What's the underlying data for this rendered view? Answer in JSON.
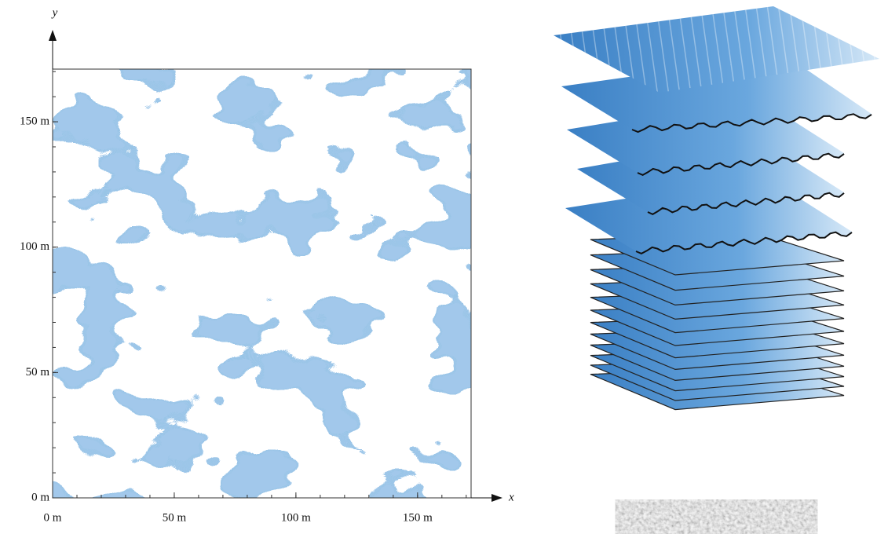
{
  "map": {
    "x_label": "x",
    "y_label": "y",
    "xlim": [
      0,
      172
    ],
    "ylim": [
      0,
      171
    ],
    "xticks": [
      {
        "value": 0,
        "label": "0 m"
      },
      {
        "value": 50,
        "label": "50 m"
      },
      {
        "value": 100,
        "label": "100 m"
      },
      {
        "value": 150,
        "label": "150 m"
      }
    ],
    "yticks": [
      {
        "value": 0,
        "label": "0 m"
      },
      {
        "value": 50,
        "label": "50 m"
      },
      {
        "value": 100,
        "label": "100 m"
      },
      {
        "value": 150,
        "label": "150 m"
      }
    ]
  }
}
